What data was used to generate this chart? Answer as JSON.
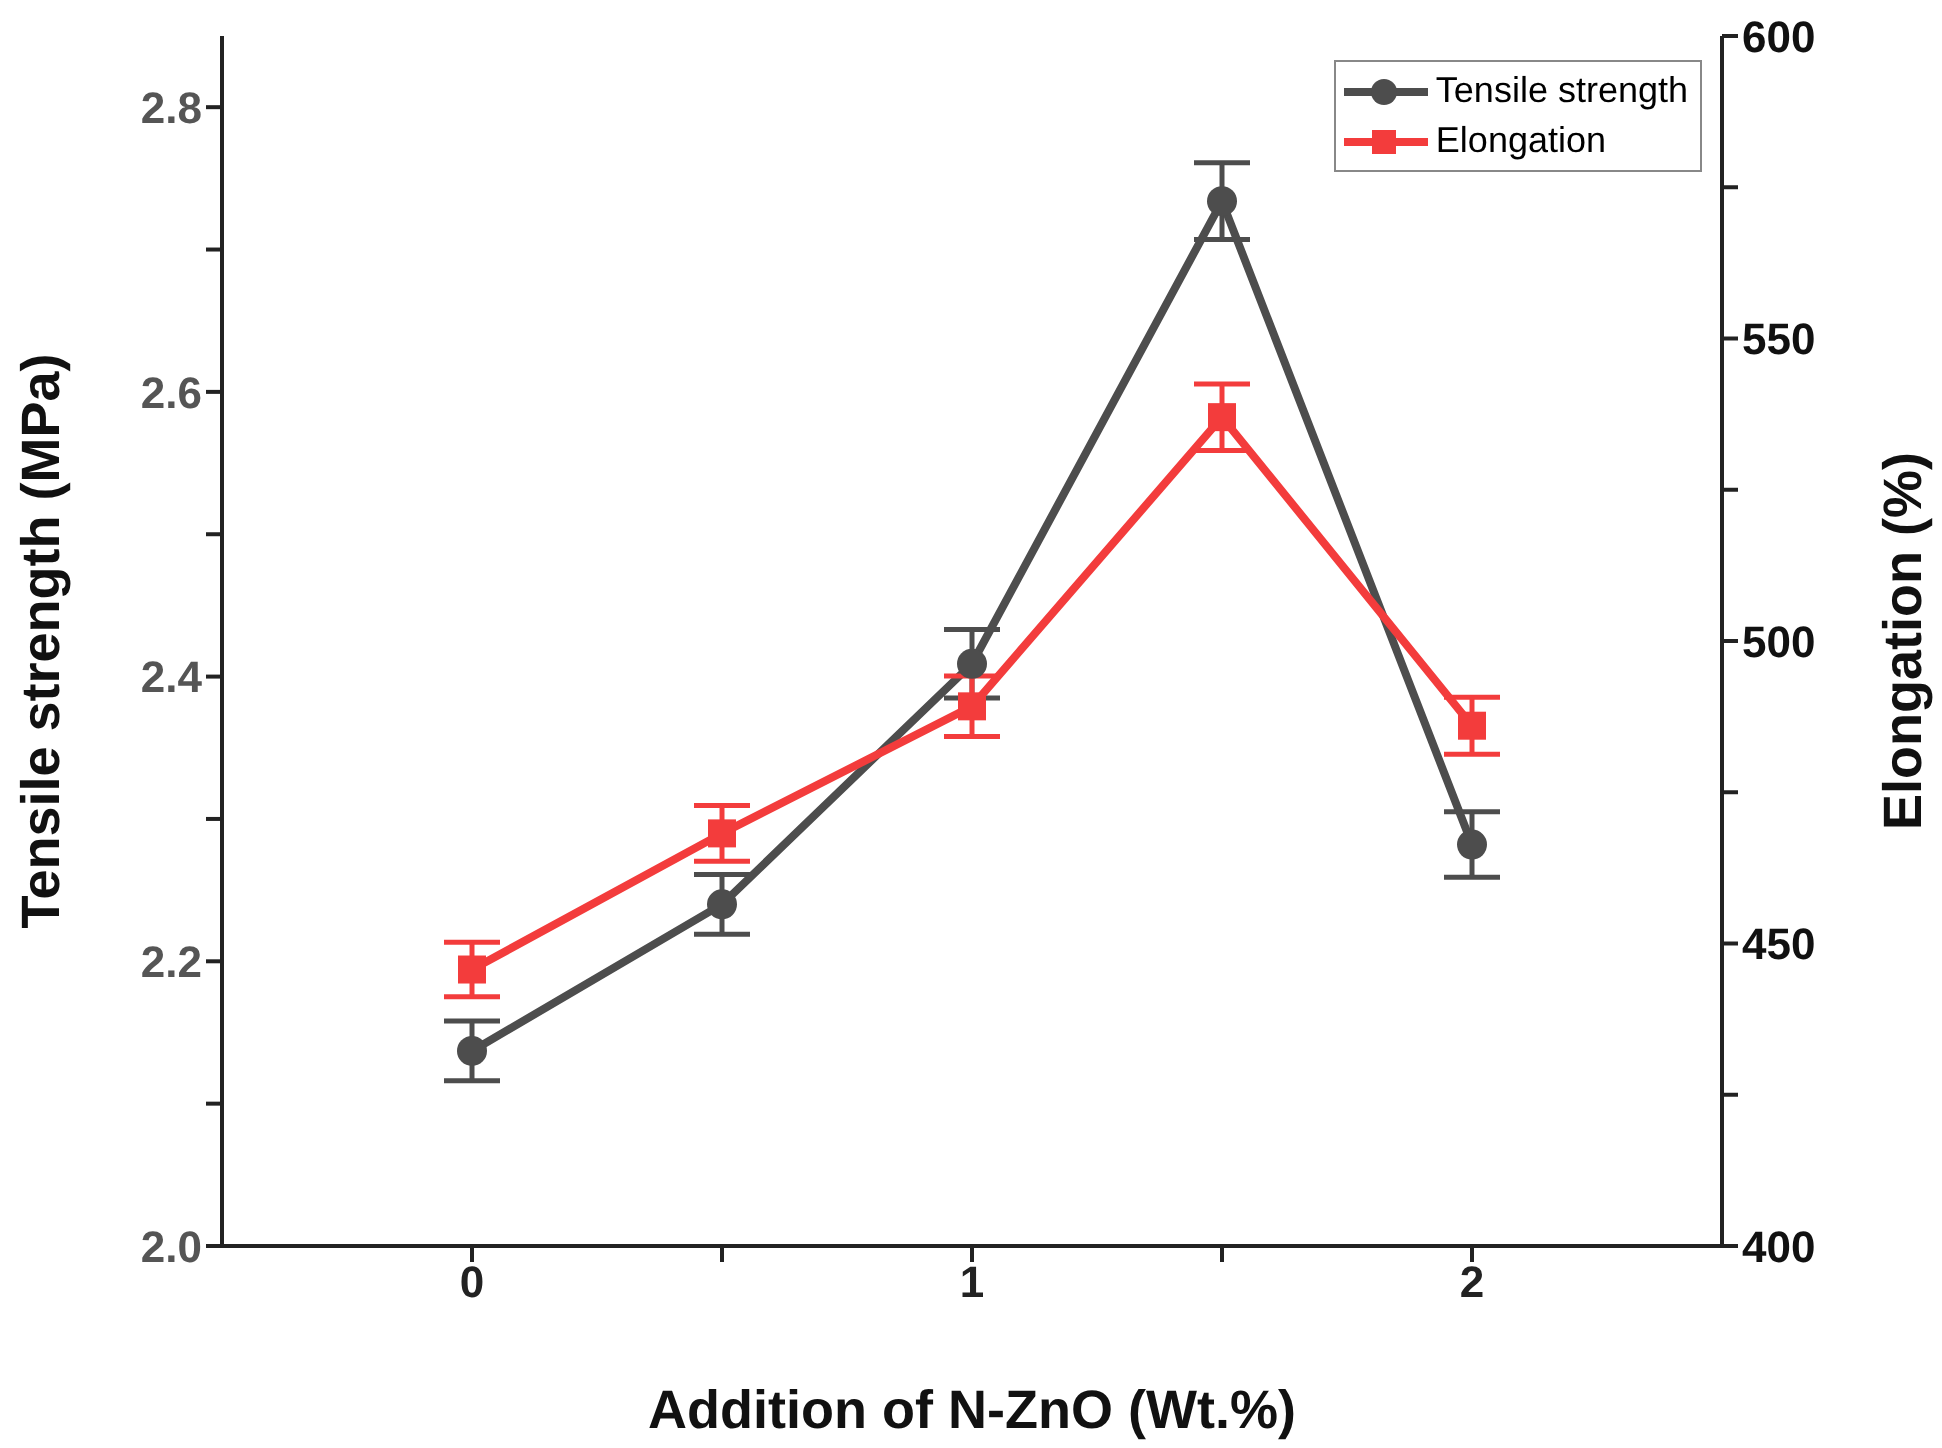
{
  "chart_data": {
    "type": "line",
    "xlabel": "Addition of N-ZnO (Wt.%)",
    "ylabel": "Tensile strength (MPa)",
    "y2label": "Elongation (%)",
    "x": [
      0,
      0.5,
      1,
      1.5,
      2
    ],
    "xlim": [
      -0.5,
      2.5
    ],
    "xticks": [
      {
        "value": 0,
        "label": "0"
      },
      {
        "value": 0.5,
        "label": null
      },
      {
        "value": 1,
        "label": "1"
      },
      {
        "value": 1.5,
        "label": null
      },
      {
        "value": 2,
        "label": "2"
      }
    ],
    "ylim": [
      2.0,
      2.85
    ],
    "yticks": [
      {
        "value": 2,
        "label": "2.0"
      },
      {
        "value": 2.1,
        "label": null
      },
      {
        "value": 2.2,
        "label": "2.2"
      },
      {
        "value": 2.3,
        "label": null
      },
      {
        "value": 2.4,
        "label": "2.4"
      },
      {
        "value": 2.5,
        "label": null
      },
      {
        "value": 2.6,
        "label": "2.6"
      },
      {
        "value": 2.7,
        "label": null
      },
      {
        "value": 2.8,
        "label": "2.8"
      }
    ],
    "y2lim": [
      400,
      600
    ],
    "y2ticks": [
      400,
      {
        "value": 425,
        "label": null
      },
      450,
      {
        "value": 475,
        "label": null
      },
      500,
      {
        "value": 525,
        "label": null
      },
      550,
      {
        "value": 575,
        "label": null
      },
      600
    ],
    "series": [
      {
        "name": "Tensile strength",
        "color": "#4d4d4d",
        "marker": "circle",
        "values": [
          2.137,
          2.24,
          2.409,
          2.734,
          2.282
        ],
        "errors": [
          0.021,
          0.021,
          0.024,
          0.027,
          0.023
        ]
      },
      {
        "name": "Elongation",
        "color": "#f33c3c",
        "marker": "square",
        "axis": "y2",
        "values": [
          445.7,
          468.2,
          489.2,
          537,
          486
        ],
        "errors": [
          4.5,
          4.6,
          5,
          5.5,
          4.7
        ]
      }
    ],
    "legend": "top right",
    "grid": false
  }
}
